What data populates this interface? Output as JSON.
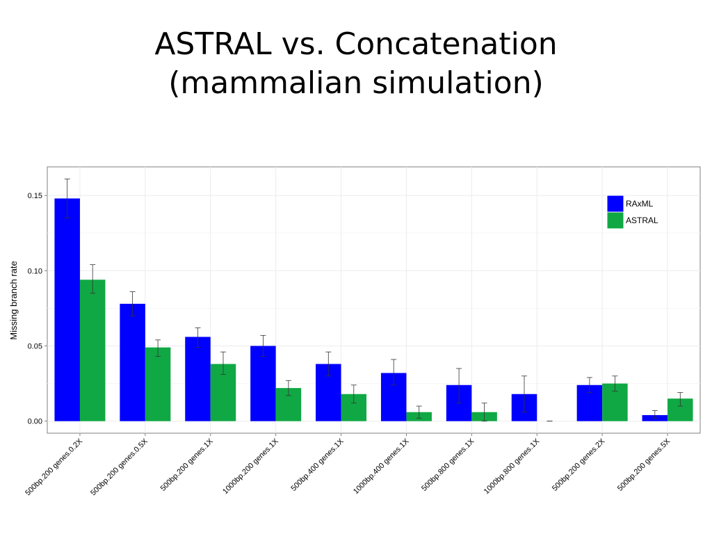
{
  "slide": {
    "title_line1": "ASTRAL vs. Concatenation",
    "title_line2": "(mammalian simulation)"
  },
  "chart_data": {
    "type": "bar",
    "title": "",
    "xlabel": "",
    "ylabel": "Missing branch rate",
    "ylim": [
      -0.008,
      0.169
    ],
    "yticks": [
      0.0,
      0.05,
      0.1,
      0.15
    ],
    "ytick_labels": [
      "0.00",
      "0.05",
      "0.10",
      "0.15"
    ],
    "grid": true,
    "legend_position": "top-right",
    "categories": [
      "500bp.200 genes.0.2X",
      "500bp.200 genes.0.5X",
      "500bp.200 genes.1X",
      "1000bp.200 genes.1X",
      "500bp.400 genes.1X",
      "1000bp.400 genes.1X",
      "500bp.800 genes.1X",
      "1000bp.800 genes.1X",
      "500bp.200 genes.2X",
      "500bp.200 genes.5X"
    ],
    "series": [
      {
        "name": "RAxML",
        "color": "#0000ff",
        "values": [
          0.148,
          0.078,
          0.056,
          0.05,
          0.038,
          0.032,
          0.024,
          0.018,
          0.024,
          0.004
        ],
        "error_low": [
          0.135,
          0.07,
          0.049,
          0.043,
          0.03,
          0.024,
          0.012,
          0.006,
          0.019,
          0.002
        ],
        "error_high": [
          0.161,
          0.086,
          0.062,
          0.057,
          0.046,
          0.041,
          0.035,
          0.03,
          0.029,
          0.007
        ]
      },
      {
        "name": "ASTRAL",
        "color": "#10a844",
        "values": [
          0.094,
          0.049,
          0.038,
          0.022,
          0.018,
          0.006,
          0.006,
          0.0,
          0.025,
          0.015
        ],
        "error_low": [
          0.085,
          0.043,
          0.031,
          0.017,
          0.012,
          0.002,
          0.0,
          0.0,
          0.02,
          0.01
        ],
        "error_high": [
          0.104,
          0.054,
          0.046,
          0.027,
          0.024,
          0.01,
          0.012,
          0.0,
          0.03,
          0.019
        ]
      }
    ]
  }
}
